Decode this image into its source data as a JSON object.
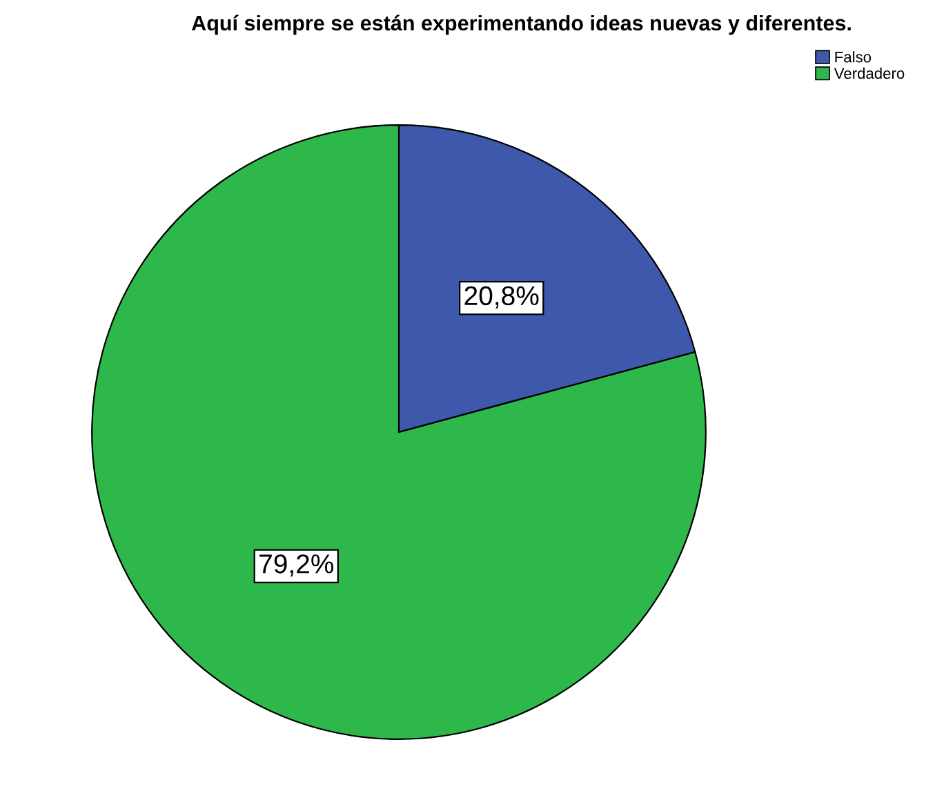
{
  "chart_data": {
    "type": "pie",
    "title": "Aquí siempre se están experimentando ideas nuevas y diferentes.",
    "categories": [
      "Falso",
      "Verdadero"
    ],
    "values": [
      20.8,
      79.2
    ],
    "colors": [
      "#3e58ac",
      "#2eb84b"
    ],
    "value_labels": [
      "20,8%",
      "79,2%"
    ],
    "legend": "top right"
  }
}
